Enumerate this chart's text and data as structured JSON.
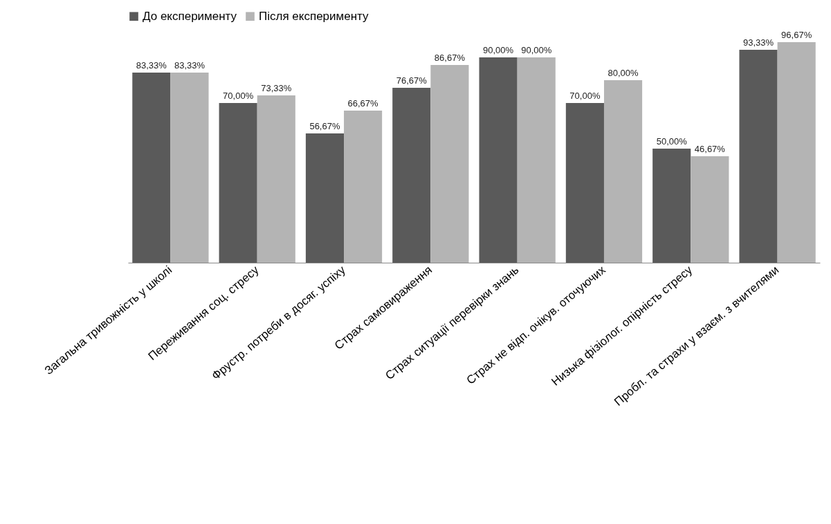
{
  "chart_data": {
    "type": "bar",
    "categories": [
      "Загальна тривожність у школі",
      "Переживання соц. стресу",
      "Фрустр. потреби в досяг. успіху",
      "Страх самовираження",
      "Страх ситуації перевірки знань",
      "Страх не відп. очікув. оточуючих",
      "Низька фізіолог. опірність стресу",
      "Пробл. та страхи у взаєм. з вчителями"
    ],
    "series": [
      {
        "name": "До експерименту",
        "color": "#5a5a5a",
        "values": [
          83.33,
          70.0,
          56.67,
          76.67,
          90.0,
          70.0,
          50.0,
          93.33
        ],
        "value_labels": [
          "83,33%",
          "70,00%",
          "56,67%",
          "76,67%",
          "90,00%",
          "70,00%",
          "50,00%",
          "93,33%"
        ]
      },
      {
        "name": "Після експерименту",
        "color": "#b4b4b4",
        "values": [
          83.33,
          73.33,
          66.67,
          86.67,
          90.0,
          80.0,
          46.67,
          96.67
        ],
        "value_labels": [
          "83,33%",
          "73,33%",
          "66,67%",
          "86,67%",
          "90,00%",
          "80,00%",
          "46,67%",
          "96,67%"
        ]
      }
    ],
    "legend": "top",
    "grid": false
  }
}
